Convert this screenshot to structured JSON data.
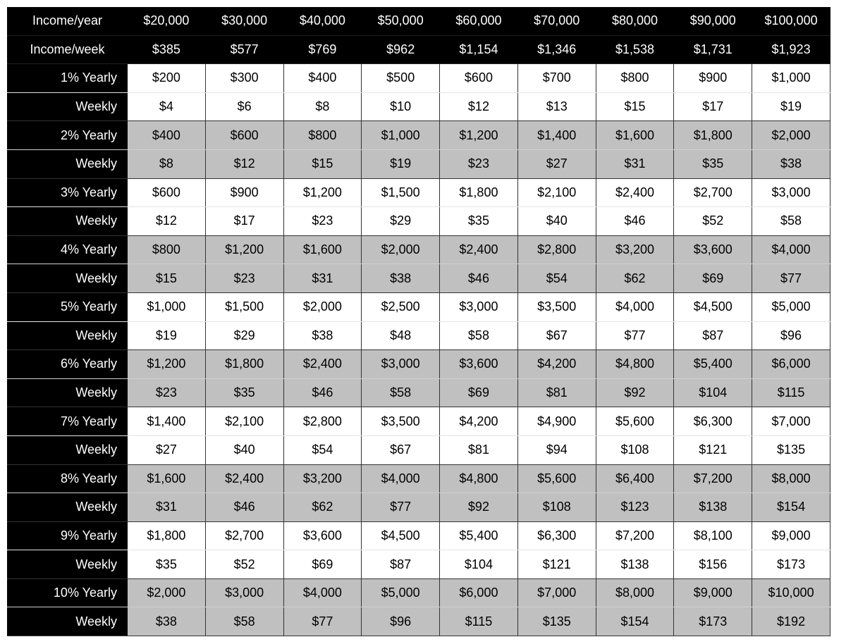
{
  "header": {
    "income_year_label": "Income/year",
    "income_year": [
      "$20,000",
      "$30,000",
      "$40,000",
      "$50,000",
      "$60,000",
      "$70,000",
      "$80,000",
      "$90,000",
      "$100,000"
    ],
    "income_week_label": "Income/week",
    "income_week": [
      "$385",
      "$577",
      "$769",
      "$962",
      "$1,154",
      "$1,346",
      "$1,538",
      "$1,731",
      "$1,923"
    ]
  },
  "colors": {
    "header_bg": "#000000",
    "shaded_row_bg": "#c0c0c0",
    "plain_row_bg": "#ffffff"
  },
  "rows": [
    {
      "yearly_label": "1% Yearly",
      "weekly_label": "Weekly",
      "shaded": false,
      "yearly": [
        "$200",
        "$300",
        "$400",
        "$500",
        "$600",
        "$700",
        "$800",
        "$900",
        "$1,000"
      ],
      "weekly": [
        "$4",
        "$6",
        "$8",
        "$10",
        "$12",
        "$13",
        "$15",
        "$17",
        "$19"
      ]
    },
    {
      "yearly_label": "2% Yearly",
      "weekly_label": "Weekly",
      "shaded": true,
      "yearly": [
        "$400",
        "$600",
        "$800",
        "$1,000",
        "$1,200",
        "$1,400",
        "$1,600",
        "$1,800",
        "$2,000"
      ],
      "weekly": [
        "$8",
        "$12",
        "$15",
        "$19",
        "$23",
        "$27",
        "$31",
        "$35",
        "$38"
      ]
    },
    {
      "yearly_label": "3% Yearly",
      "weekly_label": "Weekly",
      "shaded": false,
      "yearly": [
        "$600",
        "$900",
        "$1,200",
        "$1,500",
        "$1,800",
        "$2,100",
        "$2,400",
        "$2,700",
        "$3,000"
      ],
      "weekly": [
        "$12",
        "$17",
        "$23",
        "$29",
        "$35",
        "$40",
        "$46",
        "$52",
        "$58"
      ]
    },
    {
      "yearly_label": "4% Yearly",
      "weekly_label": "Weekly",
      "shaded": true,
      "yearly": [
        "$800",
        "$1,200",
        "$1,600",
        "$2,000",
        "$2,400",
        "$2,800",
        "$3,200",
        "$3,600",
        "$4,000"
      ],
      "weekly": [
        "$15",
        "$23",
        "$31",
        "$38",
        "$46",
        "$54",
        "$62",
        "$69",
        "$77"
      ]
    },
    {
      "yearly_label": "5% Yearly",
      "weekly_label": "Weekly",
      "shaded": false,
      "yearly": [
        "$1,000",
        "$1,500",
        "$2,000",
        "$2,500",
        "$3,000",
        "$3,500",
        "$4,000",
        "$4,500",
        "$5,000"
      ],
      "weekly": [
        "$19",
        "$29",
        "$38",
        "$48",
        "$58",
        "$67",
        "$77",
        "$87",
        "$96"
      ]
    },
    {
      "yearly_label": "6% Yearly",
      "weekly_label": "Weekly",
      "shaded": true,
      "yearly": [
        "$1,200",
        "$1,800",
        "$2,400",
        "$3,000",
        "$3,600",
        "$4,200",
        "$4,800",
        "$5,400",
        "$6,000"
      ],
      "weekly": [
        "$23",
        "$35",
        "$46",
        "$58",
        "$69",
        "$81",
        "$92",
        "$104",
        "$115"
      ]
    },
    {
      "yearly_label": "7% Yearly",
      "weekly_label": "Weekly",
      "shaded": false,
      "yearly": [
        "$1,400",
        "$2,100",
        "$2,800",
        "$3,500",
        "$4,200",
        "$4,900",
        "$5,600",
        "$6,300",
        "$7,000"
      ],
      "weekly": [
        "$27",
        "$40",
        "$54",
        "$67",
        "$81",
        "$94",
        "$108",
        "$121",
        "$135"
      ]
    },
    {
      "yearly_label": "8% Yearly",
      "weekly_label": "Weekly",
      "shaded": true,
      "yearly": [
        "$1,600",
        "$2,400",
        "$3,200",
        "$4,000",
        "$4,800",
        "$5,600",
        "$6,400",
        "$7,200",
        "$8,000"
      ],
      "weekly": [
        "$31",
        "$46",
        "$62",
        "$77",
        "$92",
        "$108",
        "$123",
        "$138",
        "$154"
      ]
    },
    {
      "yearly_label": "9% Yearly",
      "weekly_label": "Weekly",
      "shaded": false,
      "yearly": [
        "$1,800",
        "$2,700",
        "$3,600",
        "$4,500",
        "$5,400",
        "$6,300",
        "$7,200",
        "$8,100",
        "$9,000"
      ],
      "weekly": [
        "$35",
        "$52",
        "$69",
        "$87",
        "$104",
        "$121",
        "$138",
        "$156",
        "$173"
      ]
    },
    {
      "yearly_label": "10% Yearly",
      "weekly_label": "Weekly",
      "shaded": true,
      "yearly": [
        "$2,000",
        "$3,000",
        "$4,000",
        "$5,000",
        "$6,000",
        "$7,000",
        "$8,000",
        "$9,000",
        "$10,000"
      ],
      "weekly": [
        "$38",
        "$58",
        "$77",
        "$96",
        "$115",
        "$135",
        "$154",
        "$173",
        "$192"
      ]
    }
  ]
}
